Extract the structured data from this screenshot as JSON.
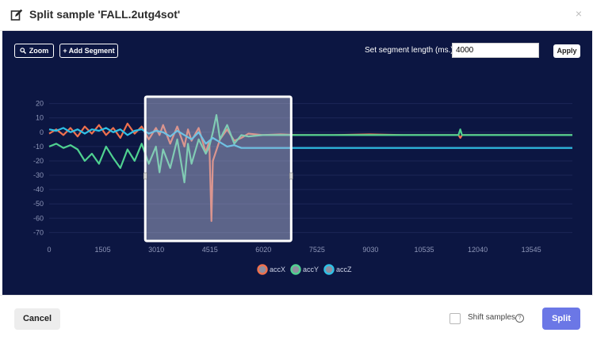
{
  "modal": {
    "title": "Split sample 'FALL.2utg4sot'",
    "close_glyph": "×",
    "icon": "edit-icon"
  },
  "toolbar": {
    "zoom_label": "Zoom",
    "zoom_icon": "search-icon",
    "add_segment_label": "Add Segment",
    "add_segment_icon": "plus-icon",
    "segment_length_label": "Set segment length (ms.):",
    "segment_length_value": "4000",
    "apply_label": "Apply"
  },
  "footer": {
    "cancel_label": "Cancel",
    "shift_label": "Shift samples",
    "shift_checked": false,
    "split_label": "Split"
  },
  "colors": {
    "background": "#0c1642",
    "accX": "#f0704d",
    "accY": "#4fd190",
    "accZ": "#2fc1e6",
    "split_button": "#6b77e6"
  },
  "chart_data": {
    "type": "line",
    "xlabel": "",
    "ylabel": "",
    "xticks": [
      0,
      1505,
      3010,
      4515,
      6020,
      7525,
      9030,
      10535,
      12040,
      13545
    ],
    "yticks": [
      20,
      10,
      0,
      -10,
      -20,
      -30,
      -40,
      -50,
      -60,
      -70
    ],
    "xlim": [
      0,
      14700
    ],
    "ylim": [
      -72,
      22
    ],
    "grid": true,
    "legend_position": "bottom-center",
    "selection": {
      "start": 2700,
      "end": 6800
    },
    "series": [
      {
        "name": "accX",
        "x": [
          0,
          200,
          400,
          600,
          800,
          1000,
          1200,
          1400,
          1600,
          1800,
          2000,
          2200,
          2400,
          2600,
          2800,
          3000,
          3100,
          3200,
          3400,
          3600,
          3800,
          3900,
          4000,
          4200,
          4400,
          4500,
          4520,
          4560,
          4600,
          4800,
          5000,
          5200,
          5400,
          5600,
          6000,
          6500,
          7000,
          8000,
          9000,
          10000,
          11000,
          11500,
          11550,
          11600,
          12000,
          13000,
          14000,
          14700
        ],
        "y": [
          -1,
          2,
          -2,
          3,
          -3,
          4,
          -1,
          5,
          -2,
          3,
          -4,
          6,
          -1,
          4,
          -5,
          3,
          -2,
          5,
          -8,
          4,
          -10,
          2,
          -6,
          3,
          -14,
          -6,
          -25,
          -62,
          -20,
          -5,
          2,
          -6,
          -4,
          -1,
          -2,
          -1.5,
          -2,
          -2,
          -1.5,
          -2,
          -2,
          -2,
          -4,
          -2,
          -2,
          -2,
          -2,
          -2
        ]
      },
      {
        "name": "accY",
        "x": [
          0,
          200,
          400,
          600,
          800,
          1000,
          1200,
          1400,
          1600,
          1800,
          2000,
          2200,
          2400,
          2600,
          2800,
          3000,
          3100,
          3200,
          3400,
          3600,
          3800,
          3900,
          4000,
          4200,
          4400,
          4500,
          4600,
          4700,
          4800,
          5000,
          5200,
          5400,
          5600,
          6000,
          6500,
          7000,
          8000,
          9000,
          10000,
          11000,
          11500,
          11550,
          11600,
          12000,
          13000,
          14000,
          14700
        ],
        "y": [
          -10,
          -8,
          -11,
          -9,
          -12,
          -20,
          -15,
          -22,
          -10,
          -18,
          -25,
          -12,
          -20,
          -8,
          -22,
          -10,
          -28,
          -12,
          -25,
          -5,
          -35,
          -8,
          -22,
          -5,
          -15,
          -10,
          0,
          12,
          -5,
          5,
          -8,
          -2,
          -3,
          -2,
          -2,
          -2,
          -2,
          -2,
          -2,
          -2,
          -2,
          2,
          -2,
          -2,
          -2,
          -2,
          -2
        ]
      },
      {
        "name": "accZ",
        "x": [
          0,
          200,
          400,
          600,
          800,
          1000,
          1200,
          1400,
          1600,
          1800,
          2000,
          2200,
          2400,
          2600,
          2800,
          3000,
          3200,
          3400,
          3600,
          3800,
          4000,
          4200,
          4400,
          4600,
          4800,
          5000,
          5200,
          5400,
          5600,
          6000,
          6500,
          7000,
          8000,
          9000,
          10000,
          11000,
          12000,
          13000,
          14000,
          14700
        ],
        "y": [
          2,
          1,
          3,
          0,
          2,
          -1,
          2,
          1,
          3,
          0,
          2,
          -2,
          1,
          2,
          -1,
          1,
          0,
          -3,
          1,
          -2,
          -5,
          0,
          -8,
          -4,
          -7,
          -10,
          -9,
          -11,
          -11,
          -11,
          -11,
          -11,
          -11,
          -11,
          -11,
          -11,
          -11,
          -11,
          -11,
          -11
        ]
      }
    ]
  }
}
